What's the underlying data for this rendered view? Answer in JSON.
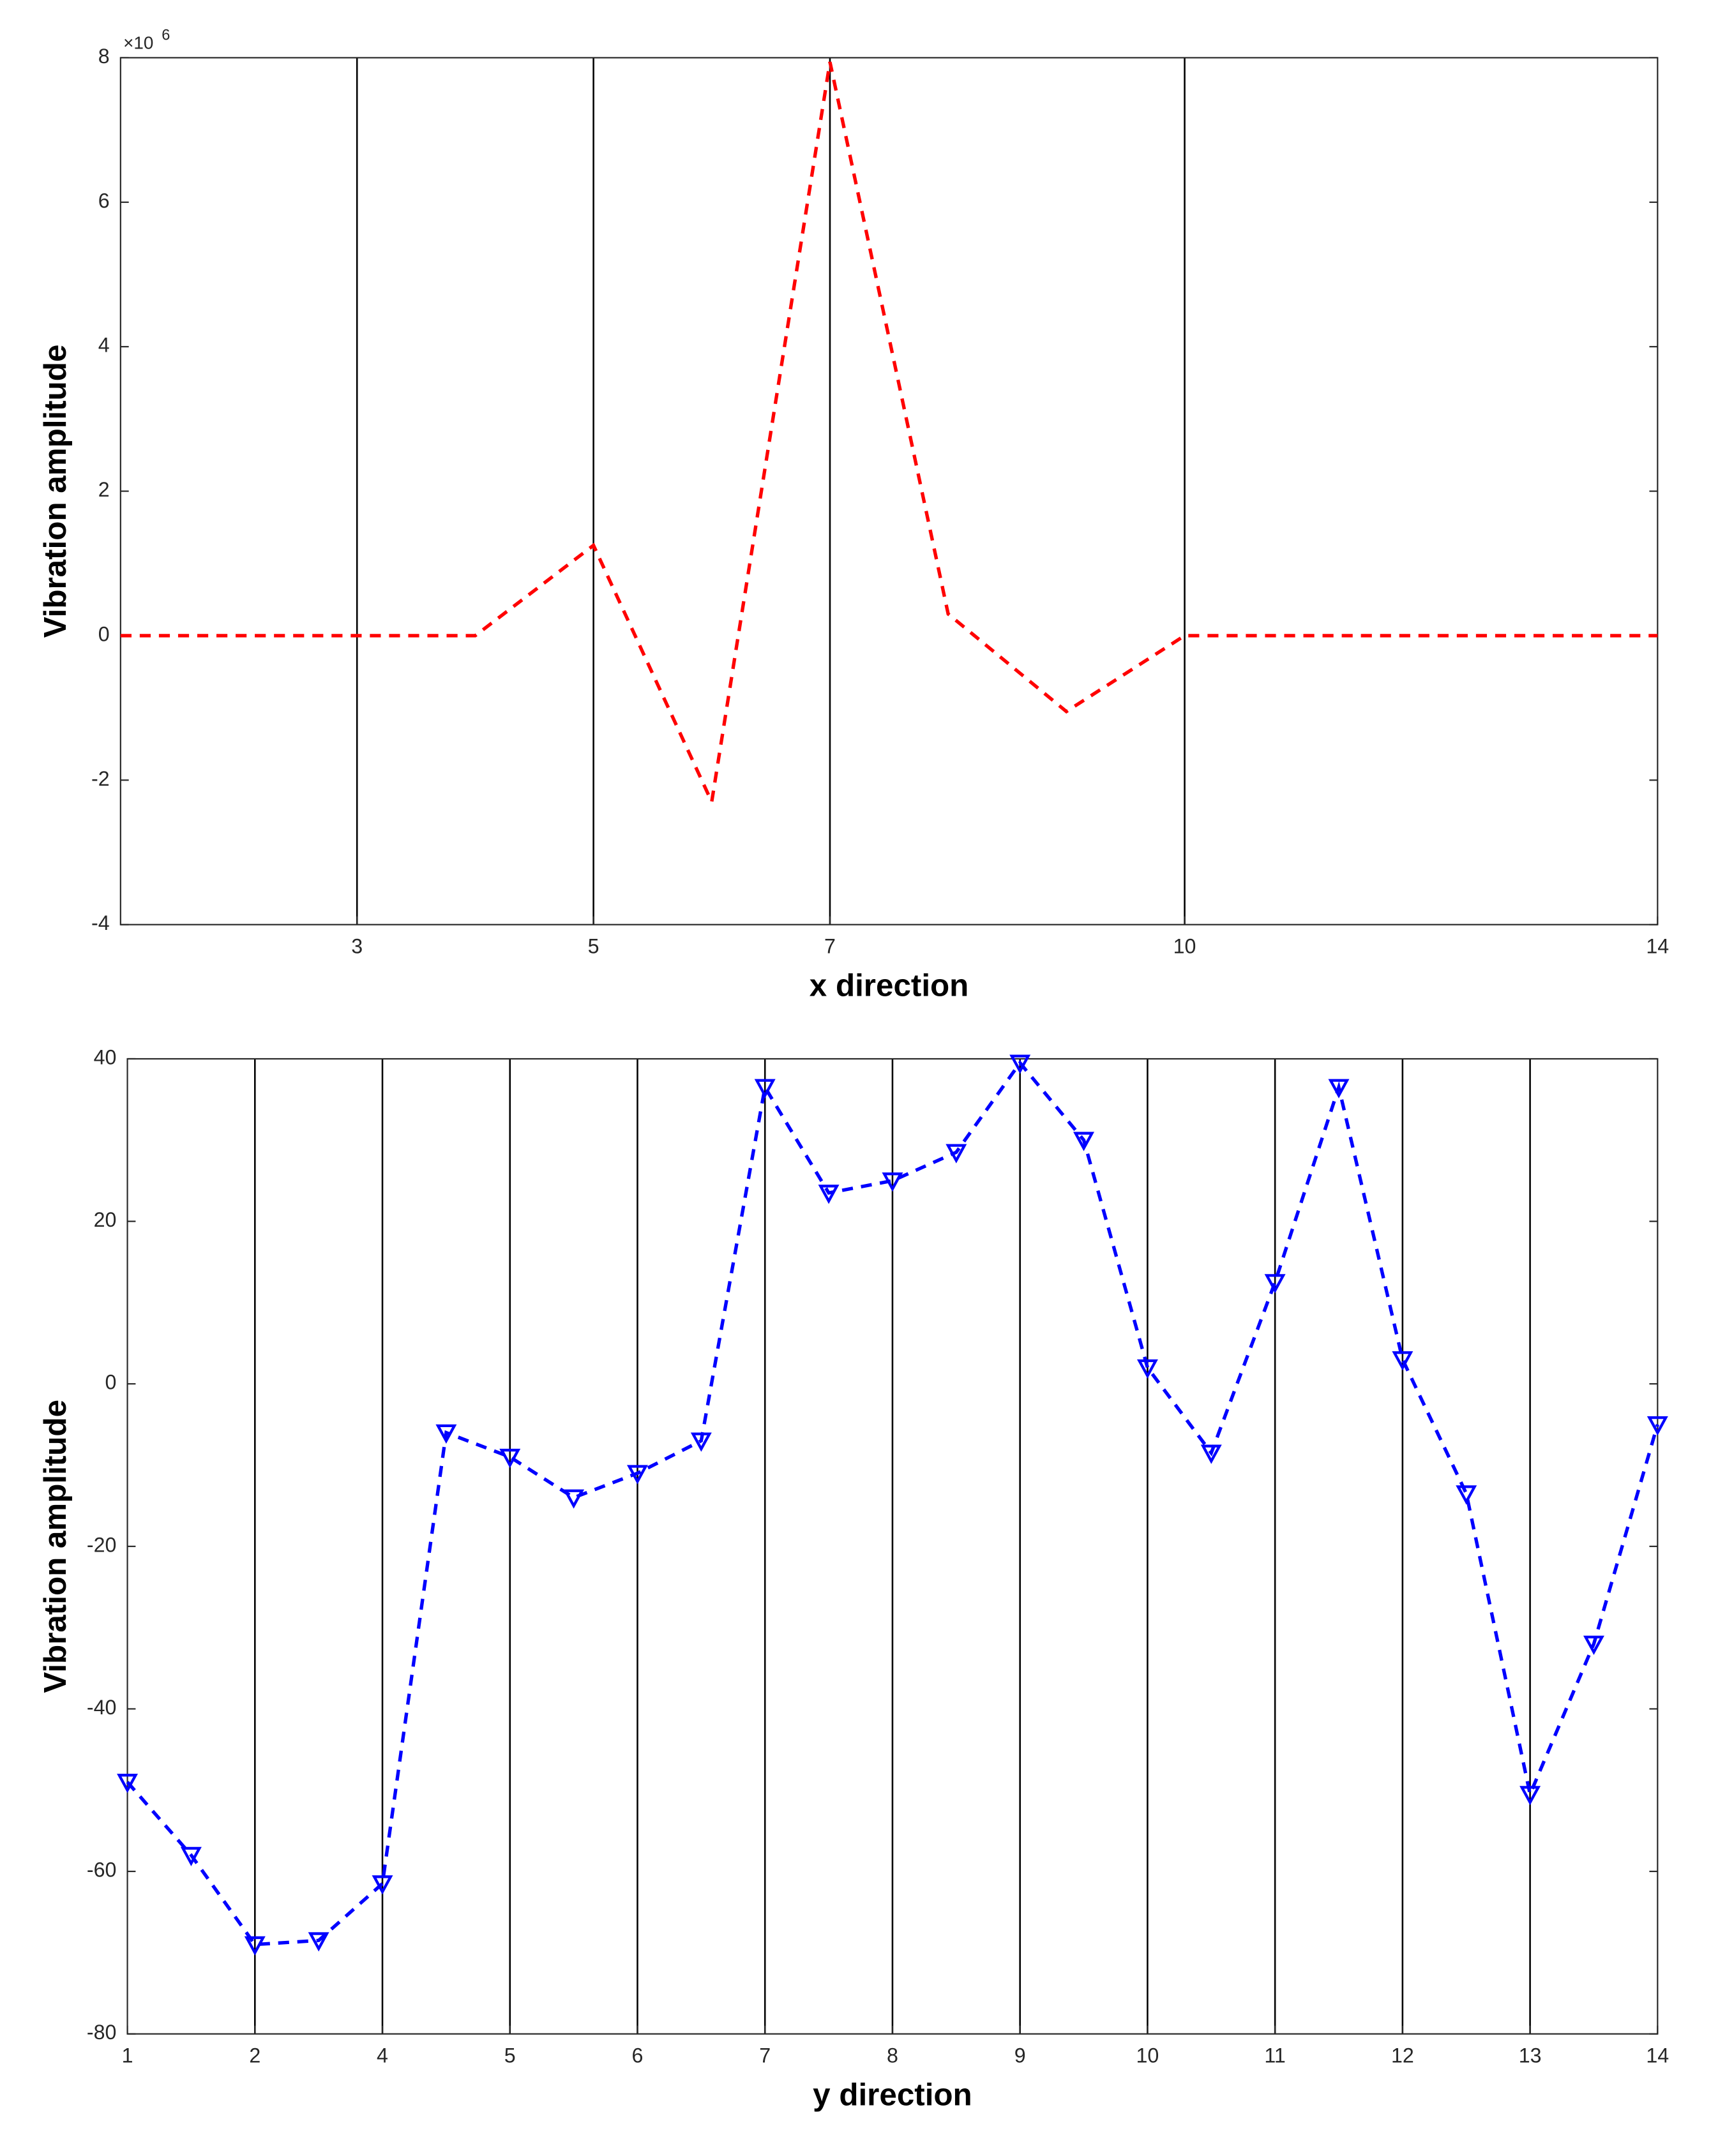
{
  "chart_data": [
    {
      "type": "line",
      "xlabel": "x direction",
      "ylabel": "Vibration amplitude",
      "y_multiplier": {
        "base": "×10",
        "exponent": "6"
      },
      "x": [
        1,
        2,
        3,
        4,
        5,
        6,
        7,
        8,
        9,
        10,
        11,
        12,
        13,
        14
      ],
      "series": [
        {
          "color": "#ff0000",
          "marker": "none",
          "values": [
            0,
            0,
            0,
            0,
            1250000,
            -2300000,
            7940000,
            300000,
            -1050000,
            0,
            0,
            0,
            0,
            0
          ]
        }
      ],
      "xlim": [
        1,
        14
      ],
      "xticks": [
        3,
        5,
        7,
        10,
        14
      ],
      "ylim": [
        -4000000,
        8000000
      ],
      "yticks": [
        {
          "value": -4000000,
          "label": "-4"
        },
        {
          "value": -2000000,
          "label": "-2"
        },
        {
          "value": 0,
          "label": "0"
        },
        {
          "value": 2000000,
          "label": "2"
        },
        {
          "value": 4000000,
          "label": "4"
        },
        {
          "value": 6000000,
          "label": "6"
        },
        {
          "value": 8000000,
          "label": "8"
        }
      ],
      "grid": "x",
      "grid_color": "#000000"
    },
    {
      "type": "line",
      "xlabel": "y direction",
      "ylabel": "Vibration amplitude",
      "x": [
        1,
        1.5,
        2,
        2.5,
        3,
        3.5,
        4,
        4.5,
        5,
        5.5,
        6,
        6.5,
        7,
        7.5,
        8,
        8.5,
        9,
        9.5,
        10,
        10.5,
        11,
        11.5,
        12,
        12.5,
        13
      ],
      "series": [
        {
          "color": "#0000ff",
          "marker": "triangle-down",
          "values": [
            -49,
            -58,
            -69,
            -68.5,
            -61.5,
            -6,
            -9,
            -14,
            -11,
            -7,
            36.5,
            23.5,
            25,
            28.5,
            39.5,
            30,
            2,
            -8.5,
            12.5,
            36.5,
            3,
            -13.5,
            -50.5,
            -32,
            -5
          ]
        }
      ],
      "xlim": [
        1,
        13
      ],
      "xticks": [
        {
          "value": 1,
          "label": "1"
        },
        {
          "value": 2,
          "label": "2"
        },
        {
          "value": 3,
          "label": "4"
        },
        {
          "value": 4,
          "label": "5"
        },
        {
          "value": 5,
          "label": "6"
        },
        {
          "value": 6,
          "label": "7"
        },
        {
          "value": 7,
          "label": "8"
        },
        {
          "value": 8,
          "label": "9"
        },
        {
          "value": 9,
          "label": "10"
        },
        {
          "value": 10,
          "label": "11"
        },
        {
          "value": 11,
          "label": "12"
        },
        {
          "value": 12,
          "label": "13"
        },
        {
          "value": 13,
          "label": "14"
        }
      ],
      "ylim": [
        -80,
        40
      ],
      "yticks": [
        -80,
        -60,
        -40,
        -20,
        0,
        20,
        40
      ],
      "grid": "x",
      "grid_color": "#000000"
    }
  ]
}
